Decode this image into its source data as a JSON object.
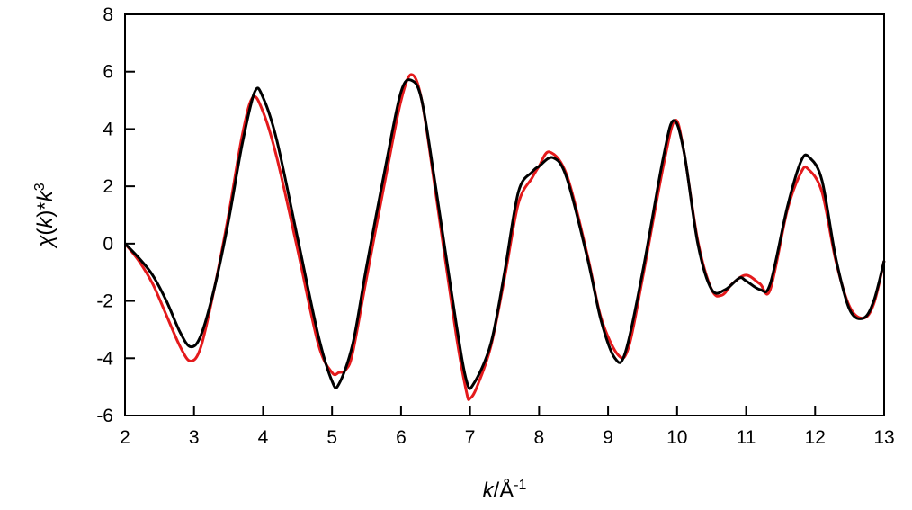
{
  "chart_data": {
    "type": "line",
    "title": "",
    "xlabel": {
      "var": "k",
      "sep": "/Å",
      "sup": "-1"
    },
    "ylabel": {
      "chi": "χ",
      "open": "(",
      "var1": "k",
      "close": ")*",
      "var2": "k",
      "sup": "3"
    },
    "xlim": [
      2,
      13
    ],
    "ylim": [
      -6,
      8
    ],
    "xticks": [
      "2",
      "3",
      "4",
      "5",
      "6",
      "7",
      "8",
      "9",
      "10",
      "11",
      "12",
      "13"
    ],
    "yticks": [
      "-6",
      "-4",
      "-2",
      "0",
      "2",
      "4",
      "6",
      "8"
    ],
    "grid": false,
    "legend": "none",
    "series": [
      {
        "color": "#e41a1c",
        "x": [
          2.0,
          2.2,
          2.4,
          2.6,
          2.8,
          2.95,
          3.1,
          3.3,
          3.5,
          3.7,
          3.85,
          4.0,
          4.2,
          4.5,
          4.8,
          5.0,
          5.1,
          5.2,
          5.3,
          5.5,
          5.8,
          6.0,
          6.15,
          6.3,
          6.5,
          6.8,
          6.95,
          7.0,
          7.1,
          7.3,
          7.5,
          7.7,
          7.9,
          8.0,
          8.15,
          8.4,
          8.7,
          8.9,
          9.15,
          9.3,
          9.5,
          9.8,
          9.97,
          10.1,
          10.3,
          10.5,
          10.65,
          10.8,
          11.0,
          11.2,
          11.35,
          11.6,
          11.8,
          11.9,
          12.1,
          12.3,
          12.5,
          12.7,
          12.85,
          13.0
        ],
        "y": [
          0,
          -0.6,
          -1.4,
          -2.5,
          -3.6,
          -4.1,
          -3.6,
          -1.5,
          1.0,
          3.8,
          5.1,
          4.6,
          3.0,
          -0.2,
          -3.5,
          -4.5,
          -4.5,
          -4.4,
          -3.8,
          -1.2,
          2.6,
          5.0,
          5.9,
          5.0,
          1.8,
          -3.2,
          -5.2,
          -5.4,
          -5.0,
          -3.6,
          -1.2,
          1.4,
          2.3,
          2.7,
          3.2,
          2.4,
          -0.4,
          -2.6,
          -3.9,
          -3.6,
          -1.2,
          2.7,
          4.3,
          3.2,
          0.1,
          -1.6,
          -1.8,
          -1.4,
          -1.1,
          -1.4,
          -1.6,
          1.2,
          2.5,
          2.6,
          1.8,
          -0.6,
          -2.2,
          -2.6,
          -2.1,
          -0.6
        ]
      },
      {
        "color": "#000000",
        "x": [
          2.0,
          2.2,
          2.4,
          2.6,
          2.8,
          2.95,
          3.1,
          3.3,
          3.5,
          3.7,
          3.88,
          4.0,
          4.2,
          4.5,
          4.8,
          5.0,
          5.1,
          5.3,
          5.5,
          5.8,
          6.0,
          6.15,
          6.3,
          6.5,
          6.8,
          6.95,
          7.05,
          7.3,
          7.5,
          7.7,
          7.9,
          8.0,
          8.2,
          8.4,
          8.7,
          8.9,
          9.1,
          9.25,
          9.5,
          9.8,
          9.95,
          10.1,
          10.3,
          10.5,
          10.7,
          10.9,
          11.0,
          11.2,
          11.35,
          11.6,
          11.8,
          11.92,
          12.1,
          12.3,
          12.5,
          12.7,
          12.85,
          13.0
        ],
        "y": [
          0,
          -0.5,
          -1.1,
          -2.0,
          -3.1,
          -3.6,
          -3.2,
          -1.5,
          0.8,
          3.5,
          5.3,
          5.1,
          3.6,
          0.2,
          -3.2,
          -4.8,
          -4.9,
          -3.5,
          -0.8,
          3.0,
          5.3,
          5.7,
          5.0,
          2.0,
          -2.8,
          -4.8,
          -4.9,
          -3.5,
          -1.0,
          1.8,
          2.5,
          2.7,
          3.0,
          2.3,
          -0.5,
          -2.7,
          -4.0,
          -3.8,
          -1.0,
          3.0,
          4.3,
          3.2,
          0.0,
          -1.6,
          -1.6,
          -1.2,
          -1.3,
          -1.6,
          -1.4,
          1.3,
          2.9,
          3.0,
          2.2,
          -0.5,
          -2.3,
          -2.6,
          -2.0,
          -0.6
        ]
      }
    ]
  }
}
